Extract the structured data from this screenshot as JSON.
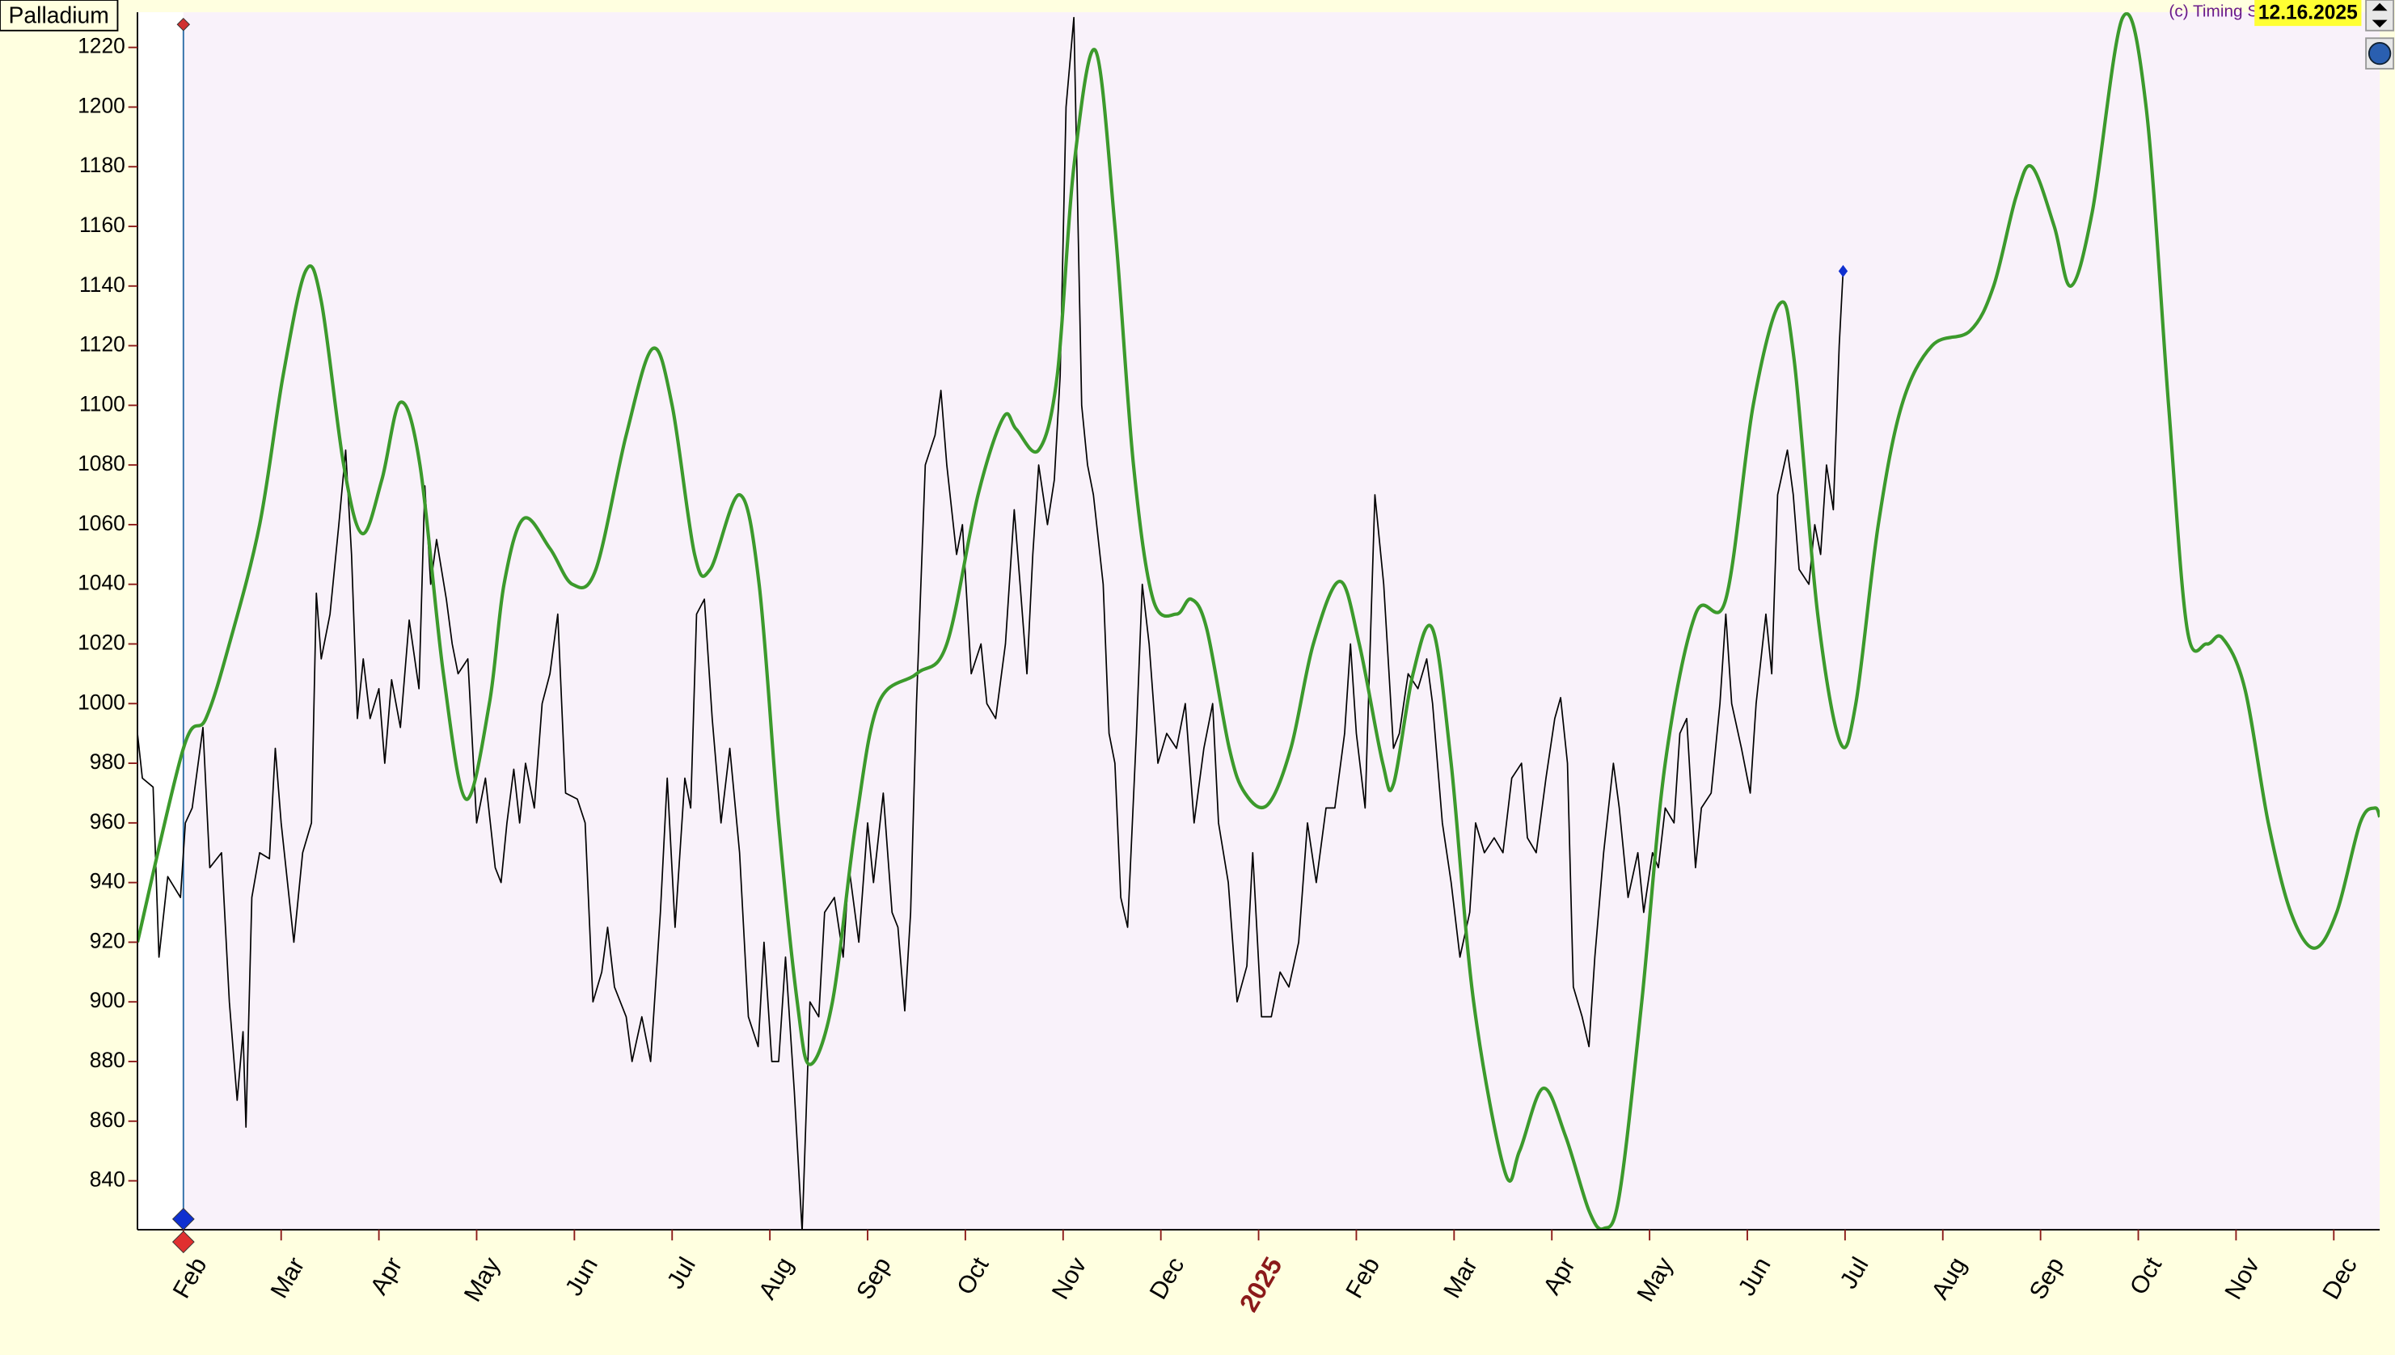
{
  "chart_data": {
    "type": "line",
    "title": "Palladium",
    "credit": "(c) Timing S",
    "date": "12.16.2025",
    "xlim": [
      0.53,
      23.47
    ],
    "ylim": [
      823.6,
      1231.8
    ],
    "yticks": [
      840,
      860,
      880,
      900,
      920,
      940,
      960,
      980,
      1000,
      1020,
      1040,
      1060,
      1080,
      1100,
      1120,
      1140,
      1160,
      1180,
      1200,
      1220
    ],
    "xticks": [
      {
        "value": 1,
        "label": "Feb"
      },
      {
        "value": 2,
        "label": "Mar"
      },
      {
        "value": 3,
        "label": "Apr"
      },
      {
        "value": 4,
        "label": "May"
      },
      {
        "value": 5,
        "label": "Jun"
      },
      {
        "value": 6,
        "label": "Jul"
      },
      {
        "value": 7,
        "label": "Aug"
      },
      {
        "value": 8,
        "label": "Sep"
      },
      {
        "value": 9,
        "label": "Oct"
      },
      {
        "value": 10,
        "label": "Nov"
      },
      {
        "value": 11,
        "label": "Dec"
      },
      {
        "value": 13,
        "label": "Feb"
      },
      {
        "value": 14,
        "label": "Mar"
      },
      {
        "value": 15,
        "label": "Apr"
      },
      {
        "value": 16,
        "label": "May"
      },
      {
        "value": 17,
        "label": "Jun"
      },
      {
        "value": 18,
        "label": "Jul"
      },
      {
        "value": 19,
        "label": "Aug"
      },
      {
        "value": 20,
        "label": "Sep"
      },
      {
        "value": 21,
        "label": "Oct"
      },
      {
        "value": 22,
        "label": "Nov"
      },
      {
        "value": 23,
        "label": "Dec"
      }
    ],
    "year_tick": {
      "value": 12,
      "label": "2025"
    },
    "cursor_x": 1,
    "series": [
      {
        "color": "#000000",
        "end_marker": true,
        "x": [
          0.53,
          0.58,
          0.69,
          0.75,
          0.84,
          0.97,
          1.02,
          1.09,
          1.2,
          1.27,
          1.39,
          1.47,
          1.55,
          1.61,
          1.64,
          1.7,
          1.78,
          1.88,
          1.94,
          2.0,
          2.13,
          2.22,
          2.31,
          2.36,
          2.41,
          2.5,
          2.59,
          2.66,
          2.72,
          2.78,
          2.84,
          2.91,
          3.0,
          3.06,
          3.13,
          3.22,
          3.31,
          3.41,
          3.47,
          3.53,
          3.59,
          3.69,
          3.75,
          3.81,
          3.91,
          4.0,
          4.09,
          4.19,
          4.25,
          4.31,
          4.38,
          4.44,
          4.5,
          4.59,
          4.67,
          4.75,
          4.83,
          4.91,
          5.03,
          5.11,
          5.19,
          5.28,
          5.34,
          5.41,
          5.53,
          5.59,
          5.69,
          5.78,
          5.88,
          5.95,
          6.03,
          6.13,
          6.19,
          6.25,
          6.33,
          6.41,
          6.5,
          6.59,
          6.69,
          6.78,
          6.88,
          6.94,
          7.02,
          7.09,
          7.16,
          7.25,
          7.33,
          7.41,
          7.5,
          7.56,
          7.66,
          7.75,
          7.81,
          7.91,
          8.0,
          8.06,
          8.16,
          8.25,
          8.31,
          8.38,
          8.44,
          8.5,
          8.59,
          8.69,
          8.75,
          8.81,
          8.91,
          8.97,
          9.06,
          9.16,
          9.22,
          9.31,
          9.41,
          9.5,
          9.56,
          9.63,
          9.69,
          9.75,
          9.84,
          9.91,
          9.97,
          10.03,
          10.11,
          10.19,
          10.25,
          10.31,
          10.41,
          10.47,
          10.53,
          10.59,
          10.66,
          10.75,
          10.81,
          10.88,
          10.97,
          11.06,
          11.16,
          11.25,
          11.34,
          11.44,
          11.53,
          11.59,
          11.69,
          11.78,
          11.88,
          11.94,
          12.03,
          12.13,
          12.22,
          12.31,
          12.41,
          12.5,
          12.59,
          12.69,
          12.78,
          12.88,
          12.94,
          13.0,
          13.09,
          13.19,
          13.28,
          13.38,
          13.44,
          13.53,
          13.63,
          13.72,
          13.78,
          13.88,
          13.97,
          14.06,
          14.16,
          14.22,
          14.31,
          14.41,
          14.5,
          14.59,
          14.69,
          14.75,
          14.84,
          14.94,
          15.03,
          15.09,
          15.16,
          15.22,
          15.31,
          15.38,
          15.44,
          15.53,
          15.63,
          15.69,
          15.78,
          15.88,
          15.94,
          16.03,
          16.09,
          16.16,
          16.25,
          16.31,
          16.38,
          16.47,
          16.53,
          16.63,
          16.72,
          16.78,
          16.84,
          16.94,
          17.03,
          17.09,
          17.19,
          17.25,
          17.31,
          17.41,
          17.47,
          17.53,
          17.63,
          17.69,
          17.75,
          17.81,
          17.88,
          17.94,
          17.98
        ],
        "values": [
          990,
          975,
          972,
          915,
          942,
          935,
          960,
          965,
          992,
          945,
          950,
          900,
          867,
          890,
          858,
          935,
          950,
          948,
          985,
          960,
          920,
          950,
          960,
          1037,
          1015,
          1030,
          1060,
          1085,
          1050,
          995,
          1015,
          995,
          1005,
          980,
          1008,
          992,
          1028,
          1005,
          1073,
          1040,
          1055,
          1035,
          1020,
          1010,
          1015,
          960,
          975,
          945,
          940,
          960,
          978,
          960,
          980,
          965,
          1000,
          1010,
          1030,
          970,
          968,
          960,
          900,
          910,
          925,
          905,
          895,
          880,
          895,
          880,
          930,
          975,
          925,
          975,
          965,
          1030,
          1035,
          995,
          960,
          985,
          950,
          895,
          885,
          920,
          880,
          880,
          915,
          870,
          823,
          900,
          895,
          930,
          935,
          915,
          945,
          920,
          960,
          940,
          970,
          930,
          925,
          897,
          930,
          1000,
          1080,
          1090,
          1105,
          1080,
          1050,
          1060,
          1010,
          1020,
          1000,
          995,
          1020,
          1065,
          1040,
          1010,
          1050,
          1080,
          1060,
          1075,
          1110,
          1200,
          1230,
          1100,
          1080,
          1070,
          1040,
          990,
          980,
          935,
          925,
          990,
          1040,
          1020,
          980,
          990,
          985,
          1000,
          960,
          985,
          1000,
          960,
          940,
          900,
          912,
          950,
          895,
          895,
          910,
          905,
          920,
          960,
          940,
          965,
          965,
          990,
          1020,
          990,
          965,
          1070,
          1040,
          985,
          990,
          1010,
          1005,
          1015,
          1000,
          960,
          940,
          915,
          930,
          960,
          950,
          955,
          950,
          975,
          980,
          955,
          950,
          975,
          995,
          1002,
          980,
          905,
          895,
          885,
          915,
          950,
          980,
          965,
          935,
          950,
          930,
          950,
          945,
          965,
          960,
          990,
          995,
          945,
          965,
          970,
          1000,
          1030,
          1000,
          985,
          970,
          1000,
          1030,
          1010,
          1070,
          1085,
          1070,
          1045,
          1040,
          1060,
          1050,
          1080,
          1065,
          1120,
          1145
        ]
      },
      {
        "color": "#3c9a2c",
        "smooth": true,
        "x": [
          0.53,
          1,
          1.23,
          1.47,
          1.78,
          2.02,
          2.25,
          2.41,
          2.64,
          2.83,
          3.03,
          3.22,
          3.42,
          3.66,
          3.89,
          4.13,
          4.28,
          4.48,
          4.75,
          4.98,
          5.22,
          5.53,
          5.8,
          6.0,
          6.23,
          6.39,
          6.69,
          6.89,
          7.09,
          7.28,
          7.41,
          7.64,
          7.88,
          8.11,
          8.5,
          8.81,
          9.13,
          9.39,
          9.52,
          9.75,
          9.94,
          10.11,
          10.33,
          10.53,
          10.72,
          10.92,
          11.16,
          11.31,
          11.47,
          11.7,
          11.86,
          12.09,
          12.33,
          12.56,
          12.83,
          13.03,
          13.27,
          13.38,
          13.58,
          13.78,
          13.97,
          14.2,
          14.52,
          14.67,
          14.91,
          15.14,
          15.38,
          15.53,
          15.69,
          15.92,
          16.16,
          16.47,
          16.78,
          17.06,
          17.33,
          17.48,
          17.72,
          17.95,
          18.11,
          18.34,
          18.58,
          18.89,
          19.28,
          19.52,
          19.75,
          19.91,
          20.14,
          20.31,
          20.53,
          20.84,
          21.08,
          21.31,
          21.5,
          21.7,
          21.86,
          22.09,
          22.33,
          22.56,
          22.8,
          23.03,
          23.27,
          23.42,
          23.47
        ],
        "values": [
          920,
          985,
          995,
          1020,
          1060,
          1110,
          1145,
          1135,
          1080,
          1057,
          1075,
          1101,
          1080,
          1010,
          968,
          1000,
          1040,
          1062,
          1052,
          1040,
          1045,
          1090,
          1119,
          1100,
          1050,
          1045,
          1070,
          1040,
          960,
          900,
          879,
          900,
          960,
          1000,
          1010,
          1020,
          1070,
          1096,
          1092,
          1085,
          1110,
          1180,
          1219,
          1160,
          1080,
          1035,
          1030,
          1035,
          1025,
          985,
          970,
          966,
          985,
          1020,
          1041,
          1020,
          980,
          973,
          1010,
          1025,
          980,
          900,
          843,
          850,
          871,
          855,
          830,
          824,
          835,
          900,
          980,
          1030,
          1035,
          1100,
          1134,
          1115,
          1030,
          987,
          1000,
          1060,
          1100,
          1120,
          1125,
          1140,
          1170,
          1180,
          1160,
          1140,
          1165,
          1230,
          1200,
          1100,
          1025,
          1020,
          1022,
          1005,
          960,
          930,
          918,
          930,
          960,
          965,
          962
        ]
      }
    ]
  }
}
